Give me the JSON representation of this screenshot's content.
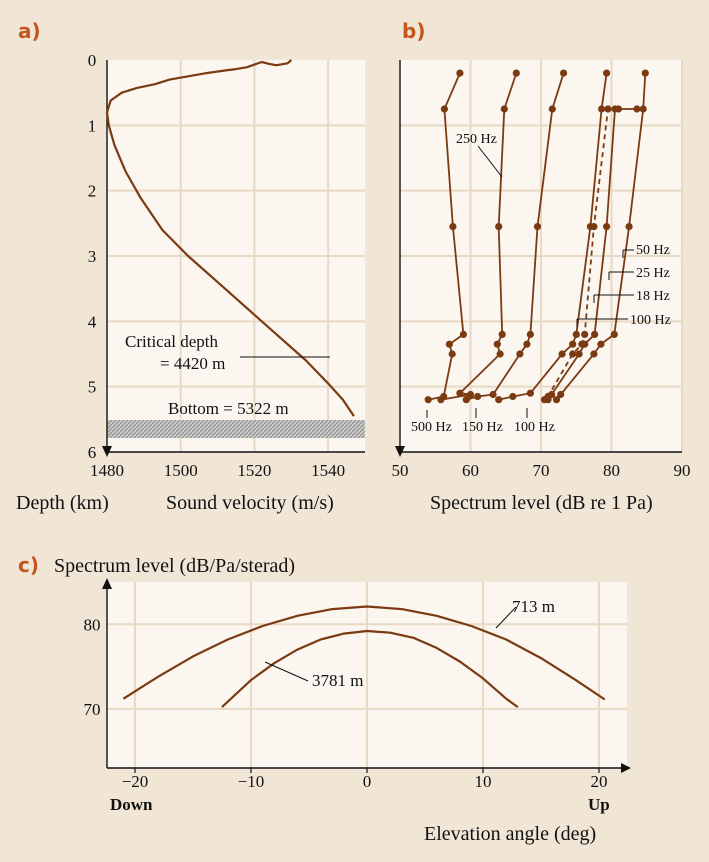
{
  "chart_data": [
    {
      "panel": "a)",
      "type": "line",
      "xlabel_left": "Depth (km)",
      "xlabel": "Sound velocity (m/s)",
      "xlim": [
        1480,
        1550
      ],
      "ylim": [
        0,
        6
      ],
      "y_inverted": true,
      "x_ticks": [
        "1480",
        "1500",
        "1520",
        "1540"
      ],
      "y_ticks": [
        "0",
        "1",
        "2",
        "3",
        "4",
        "5",
        "6"
      ],
      "grid": true,
      "series": [
        {
          "x": [
            1530,
            1529,
            1526,
            1524,
            1522,
            1520,
            1518,
            1515,
            1512,
            1507,
            1502,
            1497,
            1493,
            1488,
            1484,
            1481,
            1480,
            1480.5,
            1482,
            1485,
            1489,
            1495,
            1502,
            1510,
            1518,
            1526,
            1534,
            1540,
            1544,
            1547
          ],
          "y": [
            0,
            0.05,
            0.08,
            0.06,
            0.03,
            0.07,
            0.11,
            0.14,
            0.16,
            0.2,
            0.25,
            0.3,
            0.37,
            0.43,
            0.5,
            0.62,
            0.8,
            1.0,
            1.3,
            1.7,
            2.1,
            2.6,
            3.0,
            3.4,
            3.8,
            4.2,
            4.6,
            4.95,
            5.2,
            5.45
          ]
        }
      ],
      "annotations": [
        {
          "line1": "Critical depth",
          "line2": "= 4420 m",
          "depth": 4.42
        },
        {
          "text": "Bottom = 5322 m",
          "depth": 5.322
        }
      ]
    },
    {
      "panel": "b)",
      "type": "line",
      "xlabel": "Spectrum level (dB re 1 Pa)",
      "xlim": [
        50,
        90
      ],
      "ylim": [
        0,
        6
      ],
      "y_inverted": true,
      "x_ticks": [
        "50",
        "60",
        "70",
        "80",
        "90"
      ],
      "grid": true,
      "series": [
        {
          "name": "500 Hz",
          "x": [
            58.5,
            56.3,
            57.5,
            59,
            57,
            57.4,
            56.2,
            54
          ],
          "y": [
            0.2,
            0.75,
            2.55,
            4.2,
            4.35,
            4.5,
            5.15,
            5.2
          ]
        },
        {
          "name": "250 Hz",
          "x": [
            66.5,
            64.8,
            64,
            64.5,
            63.8,
            64.2,
            58.5,
            60,
            55.8
          ],
          "y": [
            0.2,
            0.75,
            2.55,
            4.2,
            4.35,
            4.5,
            5.1,
            5.12,
            5.2
          ]
        },
        {
          "name": "150 Hz",
          "x": [
            73.2,
            71.6,
            69.5,
            68.5,
            68,
            67,
            63.2,
            61,
            59.4
          ],
          "y": [
            0.2,
            0.75,
            2.55,
            4.2,
            4.35,
            4.5,
            5.12,
            5.15,
            5.2
          ]
        },
        {
          "name": "100 Hz",
          "x": [
            79.3,
            78.6,
            77,
            75,
            74.5,
            73,
            68.5,
            66,
            64
          ],
          "y": [
            0.2,
            0.75,
            2.55,
            4.2,
            4.35,
            4.5,
            5.1,
            5.15,
            5.2
          ]
        },
        {
          "name": "18 Hz",
          "dashed": true,
          "x": [
            81,
            79.5,
            77.5,
            76.2,
            75.8,
            74.5,
            71,
            70.5
          ],
          "y": [
            0.75,
            0.75,
            2.55,
            4.2,
            4.35,
            4.5,
            5.15,
            5.2
          ]
        },
        {
          "name": "25 Hz",
          "x": [
            83.6,
            80.5,
            79.3,
            77.6,
            76.2,
            75.4,
            71.5,
            71
          ],
          "y": [
            0.75,
            0.75,
            2.55,
            4.2,
            4.35,
            4.5,
            5.12,
            5.2
          ]
        },
        {
          "name": "50 Hz",
          "x": [
            84.8,
            84.5,
            82.5,
            80.4,
            78.5,
            77.5,
            72.8,
            72.2
          ],
          "y": [
            0.2,
            0.75,
            2.55,
            4.2,
            4.35,
            4.5,
            5.12,
            5.2
          ]
        }
      ],
      "labels": {
        "top": [
          "250 Hz"
        ],
        "right": [
          "50 Hz",
          "25 Hz",
          "18 Hz",
          "100 Hz"
        ],
        "bottom": [
          "500 Hz",
          "150 Hz",
          "100 Hz"
        ]
      }
    },
    {
      "panel": "c)",
      "type": "line",
      "ylabel": "Spectrum level (dB/Pa/sterad)",
      "xlabel": "Elevation angle (deg)",
      "xlim": [
        -22,
        22
      ],
      "ylim": [
        63,
        85
      ],
      "x_ticks": [
        "−20",
        "−10",
        "0",
        "10",
        "20"
      ],
      "y_ticks": [
        "70",
        "80"
      ],
      "x_end_labels": {
        "left": "Down",
        "right": "Up"
      },
      "grid": true,
      "series": [
        {
          "name": "713 m",
          "x": [
            -21,
            -18,
            -15,
            -12,
            -9,
            -6,
            -3,
            0,
            3,
            6,
            9,
            12,
            15,
            18,
            20.5
          ],
          "y": [
            71.2,
            73.8,
            76.2,
            78.2,
            79.8,
            81.0,
            81.8,
            82.1,
            81.8,
            81.0,
            79.8,
            78.2,
            76.0,
            73.4,
            71.1
          ]
        },
        {
          "name": "3781 m",
          "x": [
            -12.5,
            -10,
            -8,
            -6,
            -4,
            -2,
            0,
            2,
            4,
            6,
            8,
            10,
            12,
            13
          ],
          "y": [
            70.2,
            73.4,
            75.4,
            77.0,
            78.2,
            78.9,
            79.2,
            79.0,
            78.4,
            77.2,
            75.6,
            73.6,
            71.2,
            70.2
          ]
        }
      ]
    }
  ]
}
